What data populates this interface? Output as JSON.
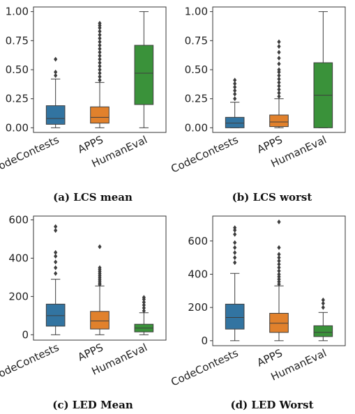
{
  "chart_data": [
    {
      "id": "a",
      "type": "box",
      "caption": "(a) LCS mean",
      "categories": [
        "CodeContests",
        "APPS",
        "HumanEval"
      ],
      "colors": [
        "#3274a1",
        "#e1812c",
        "#3a923a"
      ],
      "ylim": [
        -0.04,
        1.04
      ],
      "yticks": [
        0.0,
        0.25,
        0.5,
        0.75,
        1.0
      ],
      "ytick_labels": [
        "0.00",
        "0.25",
        "0.50",
        "0.75",
        "1.00"
      ],
      "boxes": [
        {
          "q1": 0.03,
          "median": 0.08,
          "q3": 0.19,
          "whisker_low": 0.0,
          "whisker_high": 0.42,
          "outliers": [
            0.45,
            0.48,
            0.59
          ]
        },
        {
          "q1": 0.04,
          "median": 0.09,
          "q3": 0.18,
          "whisker_low": 0.0,
          "whisker_high": 0.39,
          "outliers": [
            0.41,
            0.44,
            0.47,
            0.5,
            0.53,
            0.56,
            0.59,
            0.62,
            0.65,
            0.68,
            0.71,
            0.74,
            0.77,
            0.8,
            0.83,
            0.86,
            0.88,
            0.9
          ]
        },
        {
          "q1": 0.2,
          "median": 0.47,
          "q3": 0.71,
          "whisker_low": 0.0,
          "whisker_high": 1.0,
          "outliers": []
        }
      ]
    },
    {
      "id": "b",
      "type": "box",
      "caption": "(b) LCS worst",
      "categories": [
        "CodeContests",
        "APPS",
        "HumanEval"
      ],
      "colors": [
        "#3274a1",
        "#e1812c",
        "#3a923a"
      ],
      "ylim": [
        -0.04,
        1.04
      ],
      "yticks": [
        0.0,
        0.25,
        0.5,
        0.75,
        1.0
      ],
      "ytick_labels": [
        "0.00",
        "0.25",
        "0.50",
        "0.75",
        "1.00"
      ],
      "boxes": [
        {
          "q1": 0.0,
          "median": 0.04,
          "q3": 0.09,
          "whisker_low": 0.0,
          "whisker_high": 0.22,
          "outliers": [
            0.25,
            0.29,
            0.32,
            0.35,
            0.38,
            0.41
          ]
        },
        {
          "q1": 0.01,
          "median": 0.05,
          "q3": 0.11,
          "whisker_low": 0.0,
          "whisker_high": 0.25,
          "outliers": [
            0.27,
            0.3,
            0.33,
            0.36,
            0.39,
            0.42,
            0.45,
            0.48,
            0.5,
            0.55,
            0.6,
            0.65,
            0.7,
            0.74
          ]
        },
        {
          "q1": 0.0,
          "median": 0.28,
          "q3": 0.56,
          "whisker_low": 0.0,
          "whisker_high": 1.0,
          "outliers": []
        }
      ]
    },
    {
      "id": "c",
      "type": "box",
      "caption": "(c) LED Mean",
      "categories": [
        "CodeContests",
        "APPS",
        "HumanEval"
      ],
      "colors": [
        "#3274a1",
        "#e1812c",
        "#3a923a"
      ],
      "ylim": [
        -28,
        620
      ],
      "yticks": [
        0,
        200,
        400,
        600
      ],
      "ytick_labels": [
        "0",
        "200",
        "400",
        "600"
      ],
      "boxes": [
        {
          "q1": 45,
          "median": 100,
          "q3": 160,
          "whisker_low": 0,
          "whisker_high": 290,
          "outliers": [
            320,
            350,
            380,
            410,
            430,
            545,
            565
          ]
        },
        {
          "q1": 30,
          "median": 72,
          "q3": 122,
          "whisker_low": 0,
          "whisker_high": 255,
          "outliers": [
            262,
            270,
            280,
            290,
            300,
            310,
            320,
            330,
            340,
            350,
            460
          ]
        },
        {
          "q1": 15,
          "median": 35,
          "q3": 55,
          "whisker_low": 0,
          "whisker_high": 115,
          "outliers": [
            125,
            140,
            155,
            170,
            185,
            195
          ]
        }
      ]
    },
    {
      "id": "d",
      "type": "box",
      "caption": "(d) LED Worst",
      "categories": [
        "CodeContests",
        "APPS",
        "HumanEval"
      ],
      "colors": [
        "#3274a1",
        "#e1812c",
        "#3a923a"
      ],
      "ylim": [
        -30,
        750
      ],
      "yticks": [
        0,
        200,
        400,
        600
      ],
      "ytick_labels": [
        "0",
        "200",
        "400",
        "600"
      ],
      "boxes": [
        {
          "q1": 70,
          "median": 140,
          "q3": 220,
          "whisker_low": 0,
          "whisker_high": 405,
          "outliers": [
            470,
            500,
            530,
            560,
            590,
            640,
            665,
            680
          ]
        },
        {
          "q1": 50,
          "median": 105,
          "q3": 165,
          "whisker_low": 0,
          "whisker_high": 330,
          "outliers": [
            340,
            355,
            370,
            385,
            400,
            420,
            440,
            460,
            480,
            500,
            520,
            560,
            715
          ]
        },
        {
          "q1": 25,
          "median": 50,
          "q3": 90,
          "whisker_low": 0,
          "whisker_high": 170,
          "outliers": [
            200,
            225,
            245
          ]
        }
      ]
    }
  ]
}
